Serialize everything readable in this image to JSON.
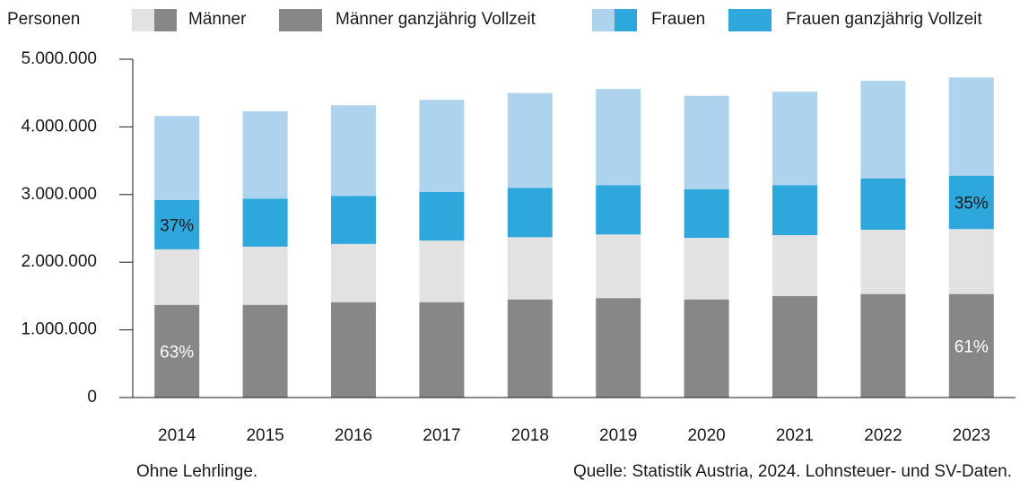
{
  "chart_data": {
    "type": "stacked_bar",
    "y_label": "Personen",
    "categories": [
      "2014",
      "2015",
      "2016",
      "2017",
      "2018",
      "2019",
      "2020",
      "2021",
      "2022",
      "2023"
    ],
    "series": [
      {
        "name": "Männer",
        "color": "#e2e2e2",
        "values": [
          820000,
          860000,
          860000,
          910000,
          920000,
          940000,
          910000,
          900000,
          950000,
          960000
        ]
      },
      {
        "name": "Männer ganzjährig Vollzeit",
        "color": "#878787",
        "values": [
          1370000,
          1370000,
          1410000,
          1410000,
          1450000,
          1470000,
          1450000,
          1500000,
          1530000,
          1530000
        ]
      },
      {
        "name": "Frauen",
        "color": "#aed3ee",
        "values": [
          1240000,
          1290000,
          1340000,
          1360000,
          1400000,
          1420000,
          1380000,
          1380000,
          1440000,
          1450000
        ]
      },
      {
        "name": "Frauen ganzjährig Vollzeit",
        "color": "#2ea7dc",
        "values": [
          730000,
          710000,
          710000,
          720000,
          730000,
          730000,
          720000,
          740000,
          760000,
          790000
        ]
      }
    ],
    "ylim": [
      0,
      5000000
    ],
    "yticks": [
      0,
      {
        "value": 1000000,
        "label": "1.000.000"
      },
      {
        "value": 2000000,
        "label": "2.000.000"
      },
      {
        "value": 3000000,
        "label": "3.000.000"
      },
      {
        "value": 4000000,
        "label": "4.000.000"
      },
      {
        "value": 5000000,
        "label": "5.000.000"
      }
    ],
    "grid": false,
    "annotations": [
      {
        "text": "63%",
        "x": "2014",
        "series": "Männer ganzjährig Vollzeit",
        "color": "#ffffff"
      },
      {
        "text": "37%",
        "x": "2014",
        "series": "Frauen ganzjährig Vollzeit",
        "color": "#1a1a1a"
      },
      {
        "text": "61%",
        "x": "2023",
        "series": "Männer ganzjährig Vollzeit",
        "color": "#ffffff"
      },
      {
        "text": "35%",
        "x": "2023",
        "series": "Frauen ganzjährig Vollzeit",
        "color": "#1a1a1a"
      }
    ],
    "note": "Ohne Lehrlinge.",
    "source": "Quelle: Statistik Austria, 2024. Lohnsteuer- und SV-Daten."
  }
}
